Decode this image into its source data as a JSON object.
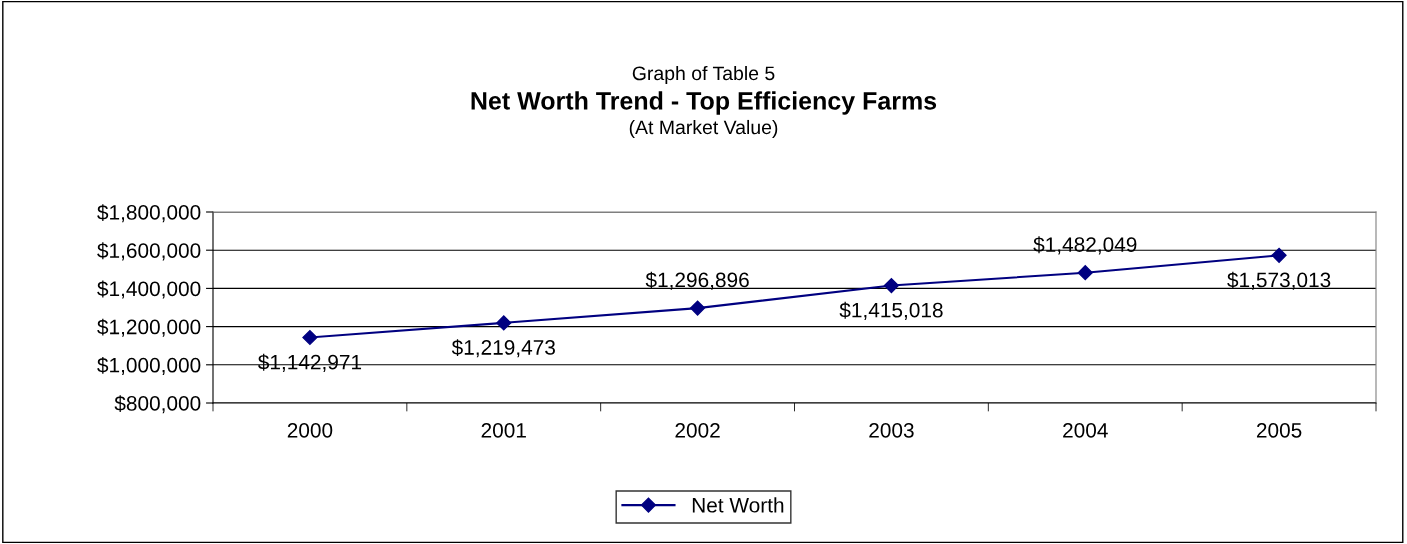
{
  "chart_data": {
    "type": "line",
    "title": "Net Worth Trend - Top Efficiency Farms",
    "subtitle": "(At Market Value)",
    "annotations": [
      "Graph of Table 5"
    ],
    "categories": [
      "2000",
      "2001",
      "2002",
      "2003",
      "2004",
      "2005"
    ],
    "series": [
      {
        "name": "Net Worth",
        "color": "#000080",
        "values": [
          1142971,
          1219473,
          1296896,
          1415018,
          1482049,
          1573013
        ],
        "value_labels": [
          "$1,142,971",
          "$1,219,473",
          "$1,296,896",
          "$1,415,018",
          "$1,482,049",
          "$1,573,013"
        ]
      }
    ],
    "ylim": [
      800000,
      1800000
    ],
    "yticks": [
      {
        "value": 800000,
        "label": "$800,000"
      },
      {
        "value": 1000000,
        "label": "$1,000,000"
      },
      {
        "value": 1200000,
        "label": "$1,200,000"
      },
      {
        "value": 1400000,
        "label": "$1,400,000"
      },
      {
        "value": 1600000,
        "label": "$1,600,000"
      },
      {
        "value": 1800000,
        "label": "$1,800,000"
      }
    ],
    "grid": "y",
    "legend": "bottom",
    "marker": "diamond",
    "line_style": "solid"
  }
}
